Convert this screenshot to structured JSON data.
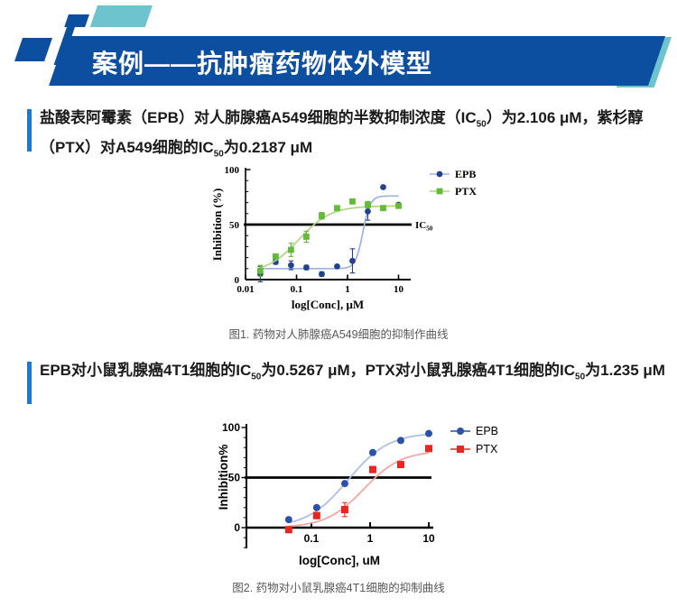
{
  "colors": {
    "banner": "#0c4fa0",
    "teal": "#6ec4ce",
    "accent_bar": "#1b7ad3",
    "caption": "#595959"
  },
  "header": {
    "title": "案例——抗肿瘤药物体外模型"
  },
  "paragraphs": [
    {
      "segments": [
        {
          "text": "盐酸表阿霉素（EPB）对人肺腺癌A549细胞的半数抑制浓度（IC"
        },
        {
          "text": "50",
          "sub": true
        },
        {
          "text": "）为2.106 μM，紫杉醇（PTX）对A549细胞的IC"
        },
        {
          "text": "50",
          "sub": true
        },
        {
          "text": "为0.2187 μM"
        }
      ]
    },
    {
      "segments": [
        {
          "text": "EPB对小鼠乳腺癌4T1细胞的IC"
        },
        {
          "text": "50",
          "sub": true
        },
        {
          "text": "为0.5267 μM，PTX对小鼠乳腺癌4T1细胞的IC"
        },
        {
          "text": "50",
          "sub": true
        },
        {
          "text": "为1.235 μM"
        }
      ]
    }
  ],
  "figures": [
    {
      "caption": "图1. 药物对人肺腺癌A549细胞的抑制作曲线"
    },
    {
      "caption": "图2. 药物对小鼠乳腺癌4T1细胞的抑制曲线"
    }
  ],
  "chart_data": [
    {
      "id": "chart1",
      "type": "scatter",
      "x_scale": "log",
      "title": "",
      "xlabel": "log[Conc], μM",
      "ylabel": "Inhibition (%)",
      "xticks": [
        0.01,
        0.1,
        1,
        10
      ],
      "yticks": [
        0,
        50,
        100
      ],
      "ylim": [
        0,
        100
      ],
      "grid": false,
      "legend_position": "top-right",
      "reference_line": {
        "y": 50,
        "label_main": "IC",
        "label_sub": "50"
      },
      "series": [
        {
          "name": "EPB",
          "marker": "circle",
          "color": "#24418f",
          "line_color": "#9fb3e0",
          "x": [
            0.0195,
            0.039,
            0.078,
            0.156,
            0.3125,
            0.625,
            1.25,
            2.5,
            5,
            10
          ],
          "y": [
            5,
            16,
            13,
            11,
            5,
            12,
            17,
            62,
            84,
            68
          ],
          "err": [
            7,
            2,
            4,
            2,
            2,
            1,
            11,
            8,
            1,
            1
          ],
          "fit": {
            "bottom": 10,
            "top": 76,
            "ec50": 2.0,
            "hill": 6,
            "range": [
              0.0195,
              10
            ]
          }
        },
        {
          "name": "PTX",
          "marker": "square",
          "color": "#63bb38",
          "line_color": "#aed781",
          "x": [
            0.0195,
            0.039,
            0.078,
            0.156,
            0.3125,
            0.625,
            1.25,
            2.5,
            5,
            10
          ],
          "y": [
            8,
            21,
            27,
            39,
            58,
            65,
            71,
            68,
            65,
            67
          ],
          "err": [
            5,
            2,
            6,
            5,
            3,
            1,
            2,
            3,
            1,
            1
          ],
          "fit": {
            "bottom": 6,
            "top": 67,
            "ec50": 0.112,
            "hill": 1.4,
            "range": [
              0.0195,
              10
            ]
          }
        }
      ]
    },
    {
      "id": "chart2",
      "type": "scatter",
      "x_scale": "log",
      "title": "",
      "xlabel": "log[Conc], uM",
      "ylabel": "Inhibition%",
      "xticks": [
        0.1,
        1,
        10
      ],
      "yticks": [
        0,
        50,
        100
      ],
      "ylim": [
        -20,
        100
      ],
      "grid": false,
      "legend_position": "top-right",
      "reference_line": {
        "y": 50
      },
      "series": [
        {
          "name": "EPB",
          "marker": "circle",
          "color": "#2a52a8",
          "line_color": "#aabce4",
          "x": [
            0.041,
            0.123,
            0.37,
            1.11,
            3.33,
            10
          ],
          "y": [
            8,
            20,
            44,
            75,
            87,
            94
          ],
          "err": [
            2,
            2,
            1,
            2,
            1,
            1
          ],
          "fit": {
            "bottom": 0,
            "top": 95,
            "ec50": 0.42,
            "hill": 1.25,
            "range": [
              0.041,
              10
            ]
          }
        },
        {
          "name": "PTX",
          "marker": "square",
          "color": "#e8251f",
          "line_color": "#f2a49e",
          "x": [
            0.041,
            0.123,
            0.37,
            1.11,
            3.33,
            10
          ],
          "y": [
            -2,
            12,
            18,
            58,
            63,
            79
          ],
          "err": [
            2,
            3,
            7,
            3,
            1,
            1
          ],
          "fit": {
            "bottom": 0,
            "top": 77,
            "ec50": 0.78,
            "hill": 1.35,
            "range": [
              0.041,
              10
            ]
          }
        }
      ]
    }
  ]
}
